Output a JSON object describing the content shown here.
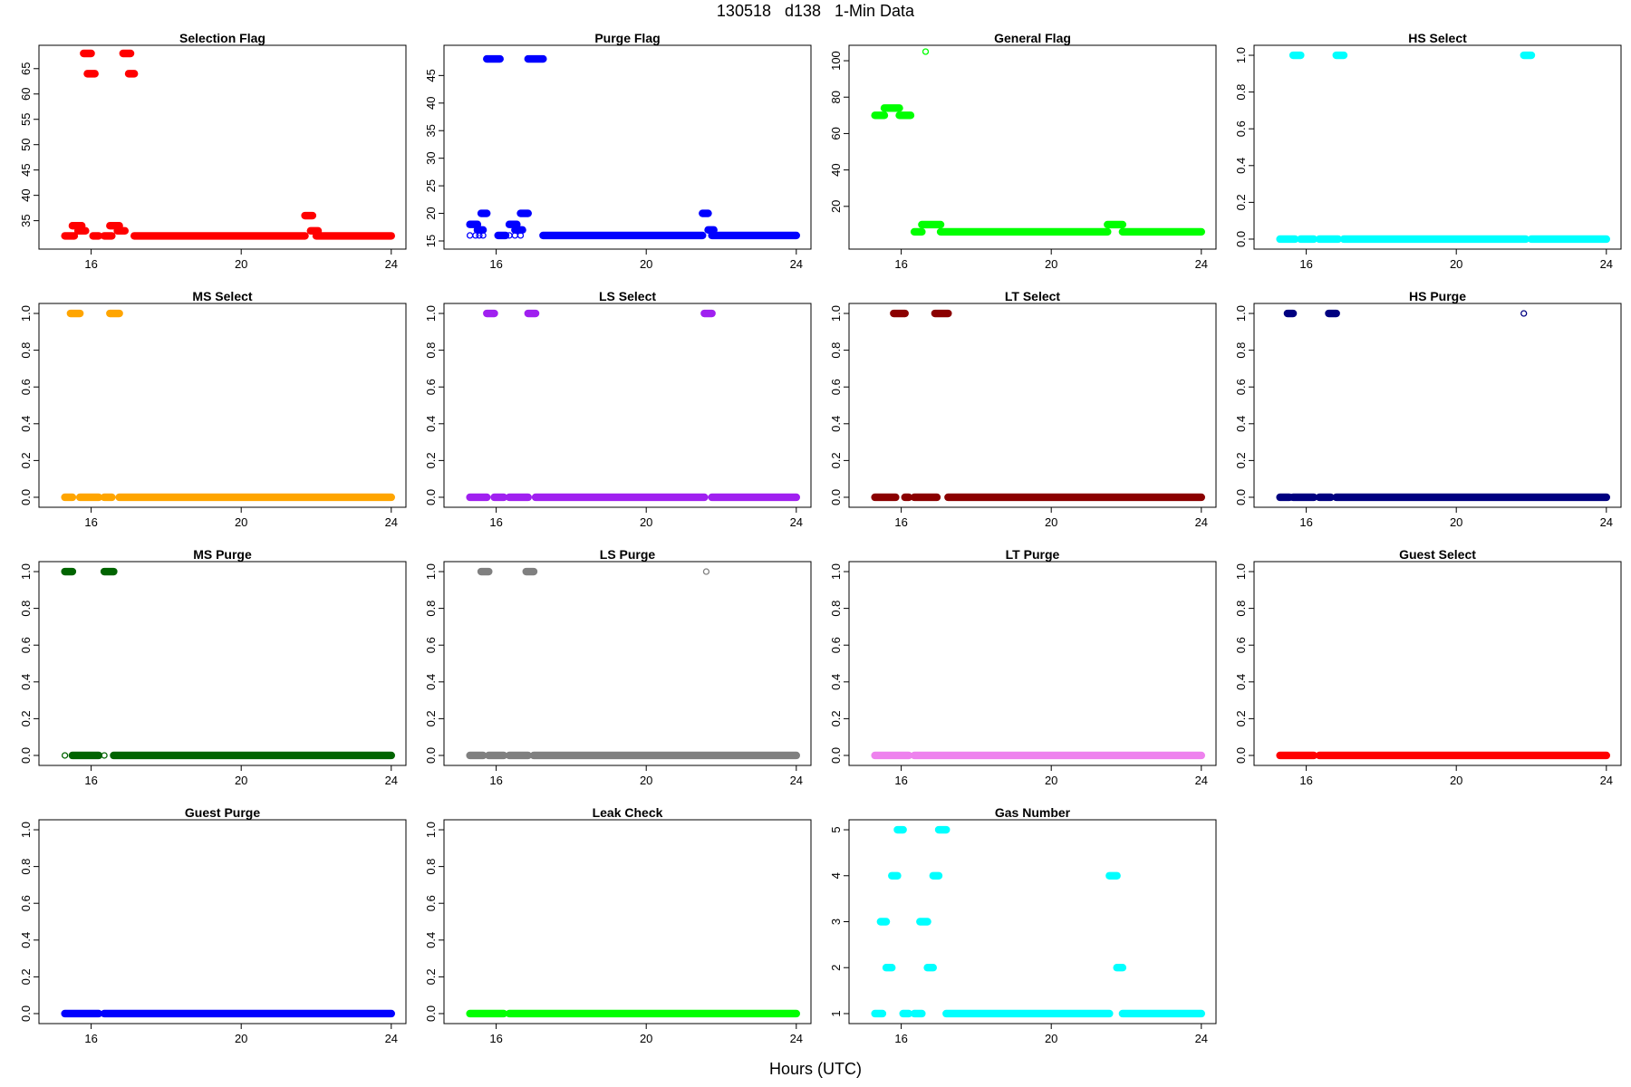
{
  "title": "130518   d138   1-Min Data",
  "xlabel": "Hours (UTC)",
  "chart_data": [
    {
      "type": "scatter",
      "title": "Selection Flag",
      "color": "#ff0000",
      "xlim": [
        15,
        24
      ],
      "ylim": [
        31,
        68
      ],
      "yticks": [
        35,
        40,
        45,
        50,
        55,
        60,
        65
      ],
      "xticks": [
        16,
        20,
        24
      ],
      "segments": [
        [
          15.3,
          15.55,
          32
        ],
        [
          15.5,
          15.75,
          34
        ],
        [
          15.65,
          15.85,
          33
        ],
        [
          15.8,
          16.0,
          68
        ],
        [
          15.9,
          16.1,
          64
        ],
        [
          16.05,
          16.2,
          32
        ],
        [
          16.35,
          16.55,
          32
        ],
        [
          16.5,
          16.75,
          34
        ],
        [
          16.7,
          16.9,
          33
        ],
        [
          16.85,
          17.05,
          68
        ],
        [
          17.0,
          17.15,
          64
        ],
        [
          17.15,
          21.7,
          32
        ],
        [
          21.7,
          21.9,
          36
        ],
        [
          21.85,
          22.05,
          33
        ],
        [
          22.0,
          24.0,
          32
        ]
      ]
    },
    {
      "type": "scatter",
      "title": "Purge Flag",
      "color": "#0000ff",
      "xlim": [
        15,
        24
      ],
      "ylim": [
        15,
        49
      ],
      "yticks": [
        15,
        20,
        25,
        30,
        35,
        40,
        45
      ],
      "xticks": [
        16,
        20,
        24
      ],
      "segments": [
        [
          15.3,
          15.5,
          18
        ],
        [
          15.5,
          15.65,
          17
        ],
        [
          15.6,
          15.75,
          20
        ],
        [
          15.75,
          16.1,
          48
        ],
        [
          16.05,
          16.25,
          16
        ],
        [
          16.35,
          16.55,
          18
        ],
        [
          16.5,
          16.7,
          17
        ],
        [
          16.65,
          16.85,
          20
        ],
        [
          16.85,
          17.25,
          48
        ],
        [
          17.25,
          21.5,
          16
        ],
        [
          21.5,
          21.65,
          20
        ],
        [
          21.65,
          21.8,
          17
        ],
        [
          21.75,
          24.0,
          16
        ]
      ],
      "open_points": [
        [
          15.3,
          16
        ],
        [
          15.45,
          16
        ],
        [
          15.55,
          16
        ],
        [
          15.65,
          16
        ],
        [
          16.35,
          16
        ],
        [
          16.5,
          16
        ],
        [
          16.65,
          16
        ]
      ]
    },
    {
      "type": "scatter",
      "title": "General Flag",
      "color": "#00ff00",
      "xlim": [
        15,
        24
      ],
      "ylim": [
        1,
        104
      ],
      "yticks": [
        20,
        40,
        60,
        80,
        100
      ],
      "xticks": [
        16,
        20,
        24
      ],
      "segments": [
        [
          15.3,
          15.55,
          70
        ],
        [
          15.55,
          15.95,
          74
        ],
        [
          15.95,
          16.25,
          70
        ],
        [
          16.35,
          16.55,
          6
        ],
        [
          16.55,
          17.05,
          10
        ],
        [
          17.05,
          21.5,
          6
        ],
        [
          21.5,
          21.9,
          10
        ],
        [
          21.9,
          24.0,
          6
        ]
      ],
      "open_points": [
        [
          16.65,
          105
        ]
      ]
    },
    {
      "type": "scatter",
      "title": "HS Select",
      "color": "#00ffff",
      "xlim": [
        15,
        24
      ],
      "ylim": [
        -0.01,
        1.01
      ],
      "yticks": [
        0.0,
        0.2,
        0.4,
        0.6,
        0.8,
        1.0
      ],
      "xticks": [
        16,
        20,
        24
      ],
      "segments": [
        [
          15.3,
          15.7,
          0
        ],
        [
          15.65,
          15.85,
          1
        ],
        [
          15.85,
          16.2,
          0
        ],
        [
          16.35,
          16.85,
          0
        ],
        [
          16.8,
          17.0,
          1
        ],
        [
          17.0,
          21.85,
          0
        ],
        [
          21.8,
          22.0,
          1
        ],
        [
          22.0,
          24.0,
          0
        ]
      ]
    },
    {
      "type": "scatter",
      "title": "MS Select",
      "color": "#ffa500",
      "xlim": [
        15,
        24
      ],
      "ylim": [
        -0.01,
        1.01
      ],
      "yticks": [
        0.0,
        0.2,
        0.4,
        0.6,
        0.8,
        1.0
      ],
      "xticks": [
        16,
        20,
        24
      ],
      "segments": [
        [
          15.3,
          15.5,
          0
        ],
        [
          15.45,
          15.7,
          1
        ],
        [
          15.7,
          16.2,
          0
        ],
        [
          16.35,
          16.55,
          0
        ],
        [
          16.5,
          16.75,
          1
        ],
        [
          16.75,
          24.0,
          0
        ]
      ]
    },
    {
      "type": "scatter",
      "title": "LS Select",
      "color": "#a020f0",
      "xlim": [
        15,
        24
      ],
      "ylim": [
        -0.01,
        1.01
      ],
      "yticks": [
        0.0,
        0.2,
        0.4,
        0.6,
        0.8,
        1.0
      ],
      "xticks": [
        16,
        20,
        24
      ],
      "segments": [
        [
          15.3,
          15.75,
          0
        ],
        [
          15.75,
          15.95,
          1
        ],
        [
          15.95,
          16.2,
          0
        ],
        [
          16.35,
          16.85,
          0
        ],
        [
          16.85,
          17.05,
          1
        ],
        [
          17.05,
          21.55,
          0
        ],
        [
          21.55,
          21.75,
          1
        ],
        [
          21.75,
          24.0,
          0
        ]
      ]
    },
    {
      "type": "scatter",
      "title": "LT Select",
      "color": "#8b0000",
      "xlim": [
        15,
        24
      ],
      "ylim": [
        -0.01,
        1.01
      ],
      "yticks": [
        0.0,
        0.2,
        0.4,
        0.6,
        0.8,
        1.0
      ],
      "xticks": [
        16,
        20,
        24
      ],
      "segments": [
        [
          15.3,
          15.85,
          0
        ],
        [
          15.8,
          16.1,
          1
        ],
        [
          16.1,
          16.2,
          0
        ],
        [
          16.35,
          16.95,
          0
        ],
        [
          16.9,
          17.25,
          1
        ],
        [
          17.25,
          24.0,
          0
        ]
      ]
    },
    {
      "type": "scatter",
      "title": "HS Purge",
      "color": "#000080",
      "xlim": [
        15,
        24
      ],
      "ylim": [
        -0.01,
        1.01
      ],
      "yticks": [
        0.0,
        0.2,
        0.4,
        0.6,
        0.8,
        1.0
      ],
      "xticks": [
        16,
        20,
        24
      ],
      "segments": [
        [
          15.3,
          15.55,
          0
        ],
        [
          15.5,
          15.65,
          1
        ],
        [
          15.65,
          16.2,
          0
        ],
        [
          16.35,
          16.65,
          0
        ],
        [
          16.6,
          16.8,
          1
        ],
        [
          16.8,
          24.0,
          0
        ]
      ],
      "open_points": [
        [
          21.8,
          1
        ]
      ]
    },
    {
      "type": "scatter",
      "title": "MS Purge",
      "color": "#006400",
      "xlim": [
        15,
        24
      ],
      "ylim": [
        -0.01,
        1.01
      ],
      "yticks": [
        0.0,
        0.2,
        0.4,
        0.6,
        0.8,
        1.0
      ],
      "xticks": [
        16,
        20,
        24
      ],
      "segments": [
        [
          15.3,
          15.5,
          1
        ],
        [
          15.5,
          16.2,
          0
        ],
        [
          16.35,
          16.6,
          1
        ],
        [
          16.6,
          24.0,
          0
        ]
      ],
      "open_points": [
        [
          15.3,
          0
        ],
        [
          16.35,
          0
        ]
      ]
    },
    {
      "type": "scatter",
      "title": "LS Purge",
      "color": "#808080",
      "xlim": [
        15,
        24
      ],
      "ylim": [
        -0.01,
        1.01
      ],
      "yticks": [
        0.0,
        0.2,
        0.4,
        0.6,
        0.8,
        1.0
      ],
      "xticks": [
        16,
        20,
        24
      ],
      "segments": [
        [
          15.3,
          15.65,
          0
        ],
        [
          15.6,
          15.8,
          1
        ],
        [
          15.8,
          16.2,
          0
        ],
        [
          16.35,
          16.85,
          0
        ],
        [
          16.8,
          17.0,
          1
        ],
        [
          17.0,
          24.0,
          0
        ]
      ],
      "open_points": [
        [
          21.6,
          1
        ]
      ]
    },
    {
      "type": "scatter",
      "title": "LT Purge",
      "color": "#ee82ee",
      "xlim": [
        15,
        24
      ],
      "ylim": [
        -0.01,
        1.01
      ],
      "yticks": [
        0.0,
        0.2,
        0.4,
        0.6,
        0.8,
        1.0
      ],
      "xticks": [
        16,
        20,
        24
      ],
      "segments": [
        [
          15.3,
          16.2,
          0
        ],
        [
          16.35,
          24.0,
          0
        ]
      ]
    },
    {
      "type": "scatter",
      "title": "Guest Select",
      "color": "#ff0000",
      "xlim": [
        15,
        24
      ],
      "ylim": [
        -0.01,
        1.01
      ],
      "yticks": [
        0.0,
        0.2,
        0.4,
        0.6,
        0.8,
        1.0
      ],
      "xticks": [
        16,
        20,
        24
      ],
      "segments": [
        [
          15.3,
          16.2,
          0
        ],
        [
          16.35,
          24.0,
          0
        ]
      ]
    },
    {
      "type": "scatter",
      "title": "Guest Purge",
      "color": "#0000ff",
      "xlim": [
        15,
        24
      ],
      "ylim": [
        -0.01,
        1.01
      ],
      "yticks": [
        0.0,
        0.2,
        0.4,
        0.6,
        0.8,
        1.0
      ],
      "xticks": [
        16,
        20,
        24
      ],
      "segments": [
        [
          15.3,
          16.2,
          0
        ],
        [
          16.35,
          24.0,
          0
        ]
      ]
    },
    {
      "type": "scatter",
      "title": "Leak Check",
      "color": "#00ff00",
      "xlim": [
        15,
        24
      ],
      "ylim": [
        -0.01,
        1.01
      ],
      "yticks": [
        0.0,
        0.2,
        0.4,
        0.6,
        0.8,
        1.0
      ],
      "xticks": [
        16,
        20,
        24
      ],
      "segments": [
        [
          15.3,
          16.2,
          0
        ],
        [
          16.35,
          24.0,
          0
        ]
      ]
    },
    {
      "type": "scatter",
      "title": "Gas Number",
      "color": "#00ffff",
      "xlim": [
        15,
        24
      ],
      "ylim": [
        0.96,
        5.04
      ],
      "yticks": [
        1,
        2,
        3,
        4,
        5
      ],
      "xticks": [
        16,
        20,
        24
      ],
      "segments": [
        [
          15.3,
          15.5,
          1
        ],
        [
          15.45,
          15.6,
          3
        ],
        [
          15.6,
          15.75,
          2
        ],
        [
          15.75,
          15.9,
          4
        ],
        [
          15.9,
          16.05,
          5
        ],
        [
          16.05,
          16.2,
          1
        ],
        [
          16.35,
          16.55,
          1
        ],
        [
          16.5,
          16.7,
          3
        ],
        [
          16.7,
          16.85,
          2
        ],
        [
          16.85,
          17.0,
          4
        ],
        [
          17.0,
          17.2,
          5
        ],
        [
          17.2,
          21.55,
          1
        ],
        [
          21.55,
          21.75,
          4
        ],
        [
          21.75,
          21.9,
          2
        ],
        [
          21.9,
          24.0,
          1
        ]
      ]
    }
  ]
}
